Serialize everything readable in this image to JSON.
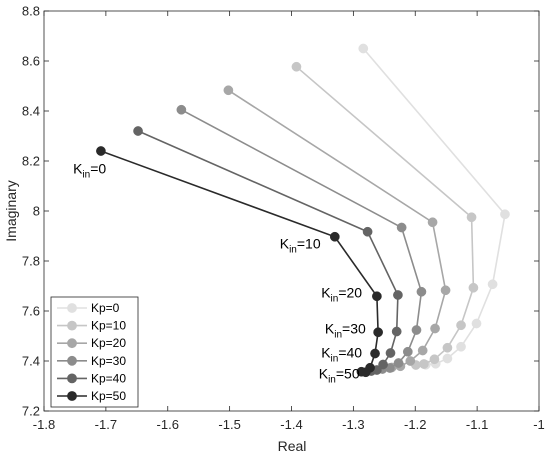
{
  "chart_data": {
    "type": "line",
    "xlabel": "Real",
    "ylabel": "Imaginary",
    "xlim": [
      -1.8,
      -1.0
    ],
    "ylim": [
      7.2,
      8.8
    ],
    "xticks": [
      -1.8,
      -1.7,
      -1.6,
      -1.5,
      -1.4,
      -1.3,
      -1.2,
      -1.1,
      -1.0
    ],
    "xtick_labels": [
      "-1.8",
      "-1.7",
      "-1.6",
      "-1.5",
      "-1.4",
      "-1.3",
      "-1.2",
      "-1.1",
      "-1"
    ],
    "yticks": [
      7.2,
      7.4,
      7.6,
      7.8,
      8.0,
      8.2,
      8.4,
      8.6,
      8.8
    ],
    "ytick_labels": [
      "7.2",
      "7.4",
      "7.6",
      "7.8",
      "8",
      "8.2",
      "8.4",
      "8.6",
      "8.8"
    ],
    "grid": false,
    "legend_position": "bottom-left",
    "series": [
      {
        "name": "Kp=0",
        "color": "#e0e0e0",
        "x": [
          -1.284,
          -1.055,
          -1.075,
          -1.101,
          -1.126,
          -1.148,
          -1.167,
          -1.183
        ],
        "y": [
          8.65,
          7.987,
          7.707,
          7.55,
          7.457,
          7.41,
          7.389,
          7.385
        ]
      },
      {
        "name": "Kp=10",
        "color": "#c6c6c6",
        "x": [
          -1.392,
          -1.109,
          -1.106,
          -1.126,
          -1.148,
          -1.169,
          -1.186,
          -1.199
        ],
        "y": [
          8.577,
          7.975,
          7.693,
          7.543,
          7.453,
          7.407,
          7.388,
          7.384
        ]
      },
      {
        "name": "Kp=20",
        "color": "#a7a7a7",
        "x": [
          -1.502,
          -1.172,
          -1.151,
          -1.168,
          -1.188,
          -1.208,
          -1.224,
          -1.238
        ],
        "y": [
          8.483,
          7.955,
          7.683,
          7.53,
          7.442,
          7.4,
          7.379,
          7.374
        ]
      },
      {
        "name": "Kp=30",
        "color": "#8c8c8c",
        "x": [
          -1.578,
          -1.222,
          -1.19,
          -1.198,
          -1.212,
          -1.227,
          -1.241,
          -1.253
        ],
        "y": [
          8.405,
          7.934,
          7.677,
          7.524,
          7.437,
          7.392,
          7.372,
          7.368
        ]
      },
      {
        "name": "Kp=40",
        "color": "#646464",
        "x": [
          -1.648,
          -1.277,
          -1.228,
          -1.23,
          -1.24,
          -1.252,
          -1.262,
          -1.271
        ],
        "y": [
          8.32,
          7.917,
          7.664,
          7.518,
          7.432,
          7.386,
          7.364,
          7.36
        ]
      },
      {
        "name": "Kp=50",
        "color": "#2a2a2a",
        "x": [
          -1.708,
          -1.33,
          -1.262,
          -1.26,
          -1.265,
          -1.273,
          -1.28,
          -1.287
        ],
        "y": [
          8.24,
          7.897,
          7.659,
          7.515,
          7.43,
          7.373,
          7.355,
          7.357
        ]
      }
    ],
    "annotations": [
      {
        "text": "K",
        "sub": "in",
        "suffix": "=0",
        "x": -1.753,
        "y": 8.15
      },
      {
        "text": "K",
        "sub": "in",
        "suffix": "=10",
        "x": -1.419,
        "y": 7.85
      },
      {
        "text": "K",
        "sub": "in",
        "suffix": "=20",
        "x": -1.352,
        "y": 7.655
      },
      {
        "text": "K",
        "sub": "in",
        "suffix": "=30",
        "x": -1.346,
        "y": 7.51
      },
      {
        "text": "K",
        "sub": "in",
        "suffix": "=40",
        "x": -1.352,
        "y": 7.414
      },
      {
        "text": "K",
        "sub": "in",
        "suffix": "=50",
        "x": -1.356,
        "y": 7.33
      }
    ]
  }
}
